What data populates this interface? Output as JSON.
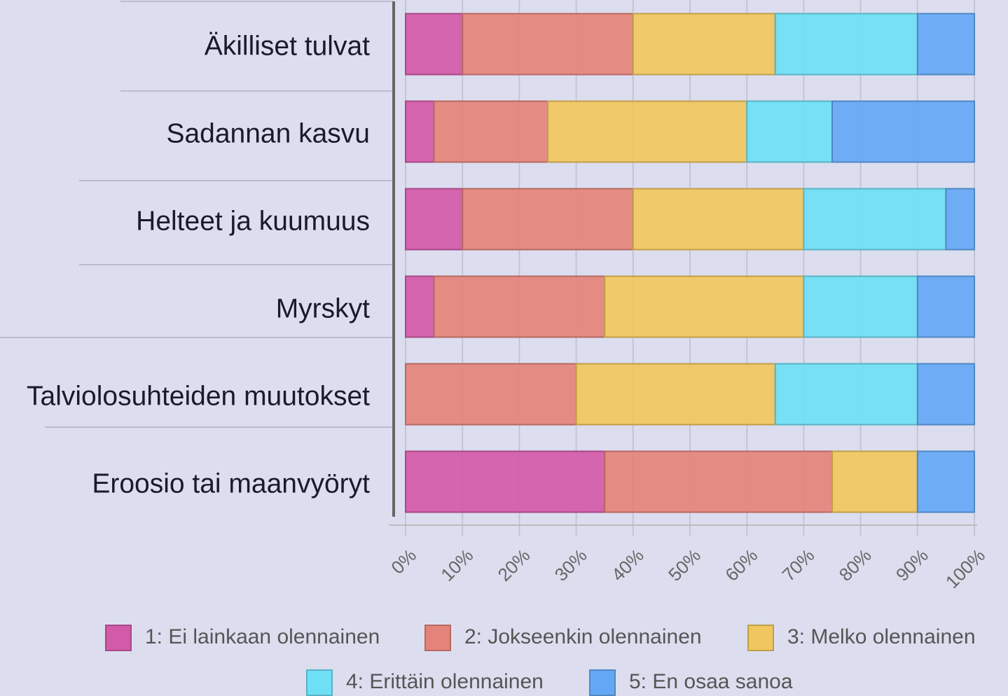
{
  "chart_data": {
    "type": "stacked_barh",
    "categories": [
      "Äkilliset tulvat",
      "Sadannan kasvu",
      "Helteet ja kuumuus",
      "Myrskyt",
      "Talviolosuhteiden muutokset",
      "Eroosio tai maanvyöryt"
    ],
    "series": [
      {
        "name": "1: Ei lainkaan olennainen",
        "color": "#d35aa8",
        "values": [
          10,
          5,
          10,
          5,
          0,
          35
        ]
      },
      {
        "name": "2: Jokseenkin olennainen",
        "color": "#e4837a",
        "values": [
          30,
          20,
          30,
          30,
          30,
          40
        ]
      },
      {
        "name": "3: Melko olennainen",
        "color": "#f0c75e",
        "values": [
          25,
          35,
          30,
          35,
          35,
          15
        ]
      },
      {
        "name": "4: Erittäin olennainen",
        "color": "#6ee0f5",
        "values": [
          25,
          15,
          25,
          20,
          25,
          0
        ]
      },
      {
        "name": "5: En osaa sanoa",
        "color": "#64a8f5",
        "values": [
          10,
          25,
          5,
          10,
          10,
          10
        ]
      }
    ],
    "xlim": [
      0,
      100
    ],
    "xticks": [
      {
        "value": 0,
        "label": "0%"
      },
      {
        "value": 10,
        "label": "10%"
      },
      {
        "value": 20,
        "label": "20%"
      },
      {
        "value": 30,
        "label": "30%"
      },
      {
        "value": 40,
        "label": "40%"
      },
      {
        "value": 50,
        "label": "50%"
      },
      {
        "value": 60,
        "label": "60%"
      },
      {
        "value": 70,
        "label": "70%"
      },
      {
        "value": 80,
        "label": "80%"
      },
      {
        "value": 90,
        "label": "90%"
      },
      {
        "value": 100,
        "label": "100%"
      }
    ],
    "grid": true
  }
}
